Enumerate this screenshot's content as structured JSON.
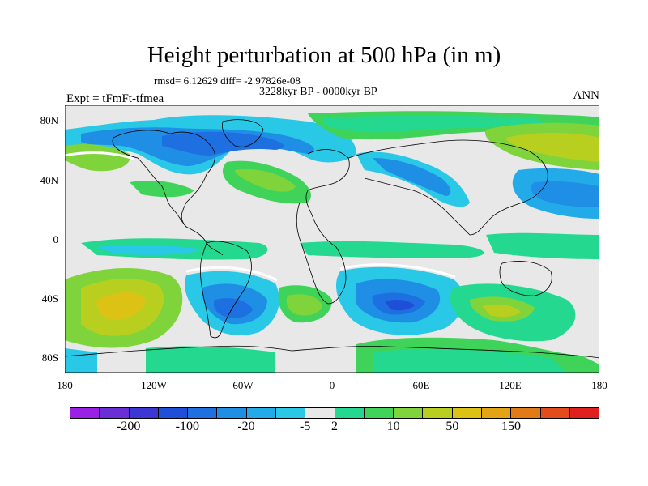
{
  "title": "Height perturbation at 500 hPa (in m)",
  "stats": "rmsd= 6.12629 diff= -2.97826e-08",
  "period": "3228kyr BP - 0000kyr BP",
  "experiment": "Expt = tFmFt-tfmea",
  "season": "ANN",
  "lat_labels": [
    "80N",
    "40N",
    "0",
    "40S",
    "80S"
  ],
  "lon_labels": [
    "180",
    "120W",
    "60W",
    "0",
    "60E",
    "120E",
    "180"
  ],
  "colorbar": {
    "colors": [
      "#9a20e6",
      "#6a2ed6",
      "#3b36d4",
      "#1f4fd8",
      "#1e6fe0",
      "#1f8fe6",
      "#23aae8",
      "#29c8e6",
      "#e8e8e8",
      "#25d88f",
      "#3fd35a",
      "#7ed43a",
      "#b9cf1f",
      "#dcc214",
      "#e2a414",
      "#e27a18",
      "#e24c1b",
      "#e0201f"
    ],
    "labels": [
      "-200",
      "-100",
      "-20",
      "-5",
      "2",
      "10",
      "50",
      "150"
    ]
  },
  "colors": {
    "land_outline": "#000000",
    "neutral": "#e8e8e8"
  }
}
